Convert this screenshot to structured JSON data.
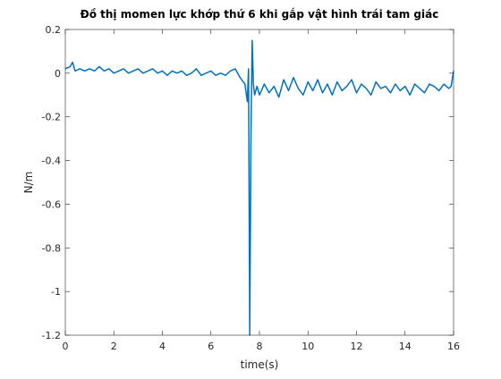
{
  "chart_data": {
    "type": "line",
    "title": "Đồ thị momen lực khớp thứ 6 khi gắp vật hình trái tam giác",
    "xlabel": "time(s)",
    "ylabel": "N/m",
    "color": "#0072bd",
    "x": [
      0,
      0.2,
      0.3,
      0.4,
      0.6,
      0.8,
      1.0,
      1.2,
      1.4,
      1.6,
      1.8,
      2.0,
      2.2,
      2.4,
      2.6,
      2.8,
      3.0,
      3.2,
      3.4,
      3.6,
      3.8,
      4.0,
      4.2,
      4.4,
      4.6,
      4.8,
      5.0,
      5.2,
      5.4,
      5.6,
      5.8,
      6.0,
      6.2,
      6.4,
      6.6,
      6.8,
      7.0,
      7.2,
      7.4,
      7.5,
      7.55,
      7.6,
      7.65,
      7.7,
      7.75,
      7.8,
      7.9,
      8.0,
      8.2,
      8.4,
      8.6,
      8.8,
      9.0,
      9.2,
      9.4,
      9.6,
      9.8,
      10.0,
      10.2,
      10.4,
      10.6,
      10.8,
      11.0,
      11.2,
      11.4,
      11.6,
      11.8,
      12.0,
      12.2,
      12.4,
      12.6,
      12.8,
      13.0,
      13.2,
      13.4,
      13.6,
      13.8,
      14.0,
      14.2,
      14.4,
      14.6,
      14.8,
      15.0,
      15.2,
      15.4,
      15.6,
      15.8,
      15.9,
      16.0
    ],
    "values": [
      0.02,
      0.03,
      0.05,
      0.01,
      0.02,
      0.01,
      0.02,
      0.01,
      0.03,
      0.01,
      0.02,
      0.0,
      0.01,
      0.02,
      0.0,
      0.01,
      0.02,
      0.0,
      0.01,
      0.02,
      0.0,
      0.01,
      -0.01,
      0.01,
      0.0,
      0.01,
      -0.01,
      0.0,
      0.02,
      -0.01,
      0.0,
      0.01,
      -0.01,
      0.0,
      -0.01,
      0.01,
      0.02,
      -0.02,
      -0.05,
      -0.13,
      0.02,
      -1.2,
      -0.3,
      0.15,
      -0.05,
      -0.1,
      -0.06,
      -0.1,
      -0.05,
      -0.09,
      -0.06,
      -0.11,
      -0.03,
      -0.08,
      -0.02,
      -0.07,
      -0.1,
      -0.04,
      -0.08,
      -0.03,
      -0.09,
      -0.05,
      -0.1,
      -0.04,
      -0.08,
      -0.06,
      -0.03,
      -0.09,
      -0.05,
      -0.07,
      -0.1,
      -0.04,
      -0.07,
      -0.06,
      -0.09,
      -0.05,
      -0.08,
      -0.06,
      -0.1,
      -0.05,
      -0.07,
      -0.09,
      -0.05,
      -0.06,
      -0.08,
      -0.05,
      -0.07,
      -0.06,
      0.01
    ],
    "xlim": [
      0,
      16
    ],
    "ylim": [
      -1.2,
      0.2
    ],
    "xticks": [
      0,
      2,
      4,
      6,
      8,
      10,
      12,
      14,
      16
    ],
    "yticks": [
      -1.2,
      -1,
      -0.8,
      -0.6,
      -0.4,
      -0.2,
      0,
      0.2
    ]
  }
}
